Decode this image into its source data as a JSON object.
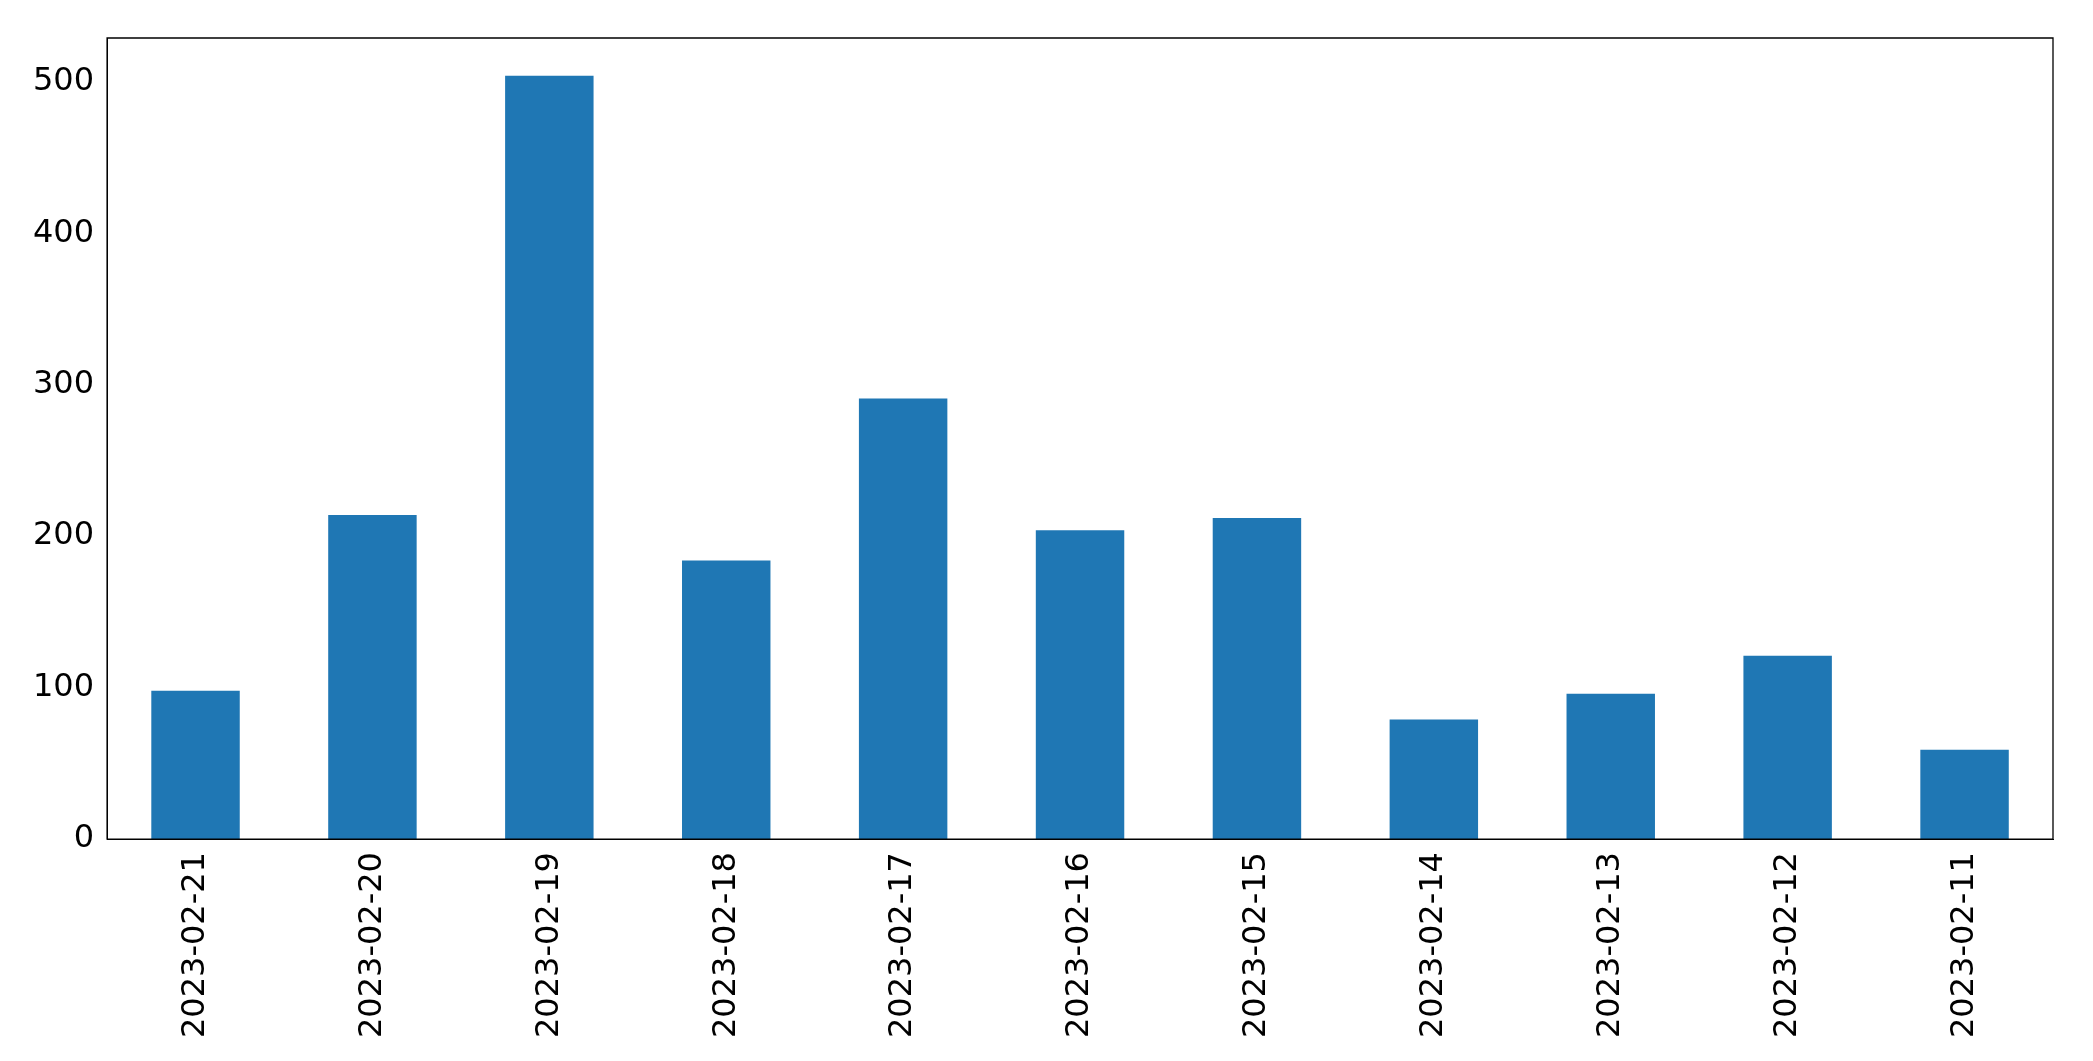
{
  "chart_data": {
    "type": "bar",
    "categories": [
      "2023-02-21",
      "2023-02-20",
      "2023-02-19",
      "2023-02-18",
      "2023-02-17",
      "2023-02-16",
      "2023-02-15",
      "2023-02-14",
      "2023-02-13",
      "2023-02-12",
      "2023-02-11"
    ],
    "values": [
      98,
      214,
      504,
      184,
      291,
      204,
      212,
      79,
      96,
      121,
      59
    ],
    "color": "#1f77b4",
    "ylim": [
      0,
      529
    ],
    "yticks": [
      0,
      100,
      200,
      300,
      400,
      500
    ],
    "grid": false,
    "legend": false
  }
}
